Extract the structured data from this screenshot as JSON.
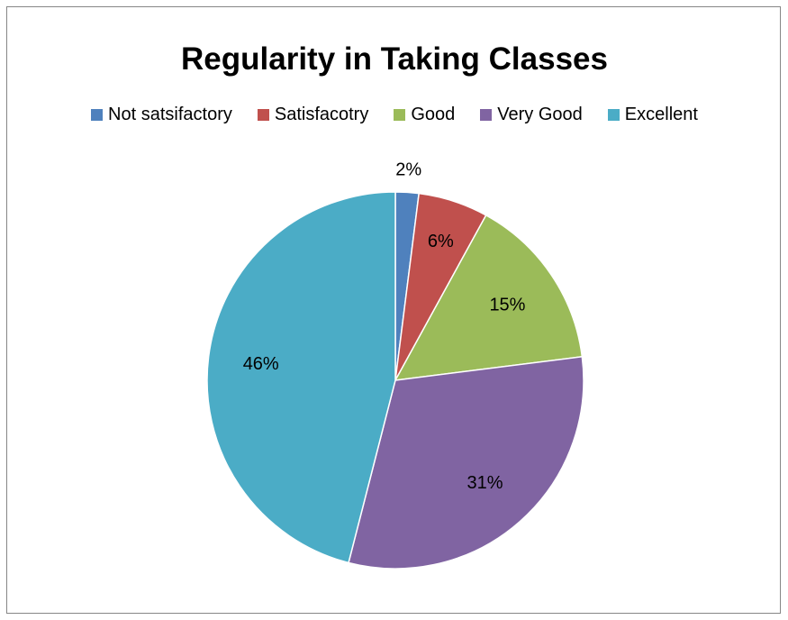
{
  "chart_data": {
    "type": "pie",
    "title": "Regularity in Taking Classes",
    "legend_position": "top",
    "categories": [
      "Not satsifactory",
      "Satisfacotry",
      "Good",
      "Very Good",
      "Excellent"
    ],
    "values": [
      2,
      6,
      15,
      31,
      46
    ],
    "labels": [
      "2%",
      "6%",
      "15%",
      "31%",
      "46%"
    ],
    "colors": [
      "#4F81BD",
      "#C0504D",
      "#9BBB59",
      "#8064A2",
      "#4BACC6"
    ]
  }
}
